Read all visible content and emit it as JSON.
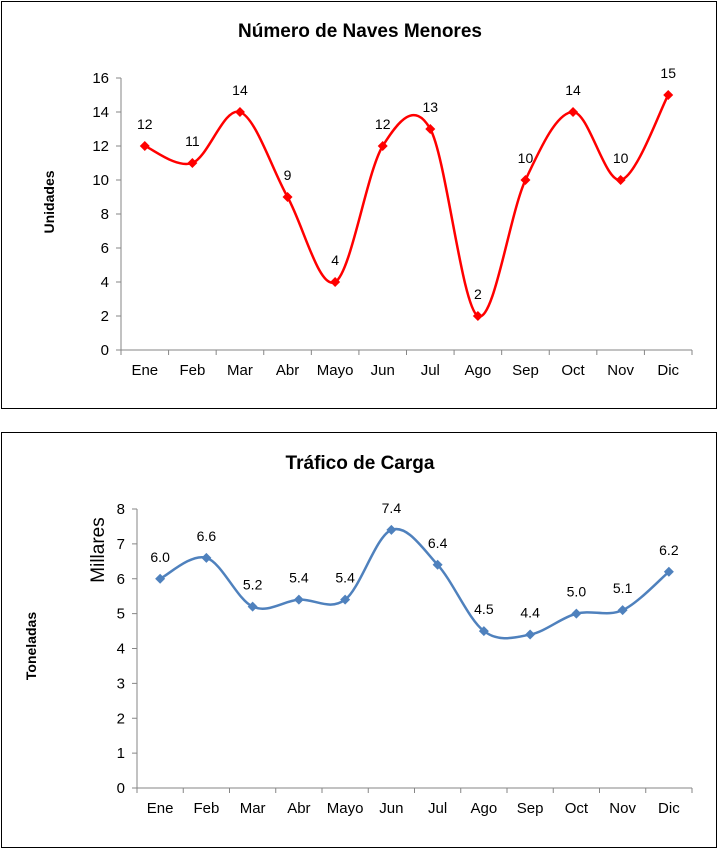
{
  "chart_data": [
    {
      "type": "line",
      "title": "Número de Naves Menores",
      "ylabel": "Unidades",
      "xlabel": "",
      "categories": [
        "Ene",
        "Feb",
        "Mar",
        "Abr",
        "Mayo",
        "Jun",
        "Jul",
        "Ago",
        "Sep",
        "Oct",
        "Nov",
        "Dic"
      ],
      "values": [
        12,
        11,
        14,
        9,
        4,
        12,
        13,
        2,
        10,
        14,
        10,
        15
      ],
      "data_labels": [
        "12",
        "11",
        "14",
        "9",
        "4",
        "12",
        "13",
        "2",
        "10",
        "14",
        "10",
        "15"
      ],
      "ylim": [
        0,
        16
      ],
      "yticks": [
        "0",
        "2",
        "4",
        "6",
        "8",
        "10",
        "12",
        "14",
        "16"
      ],
      "color": "#ff0000",
      "marker": "diamond",
      "smooth": true,
      "grid": false,
      "legend": "none"
    },
    {
      "type": "line",
      "title": "Tráfico de Carga",
      "ylabel": "Toneladas",
      "unit_label": "Millares",
      "xlabel": "",
      "categories": [
        "Ene",
        "Feb",
        "Mar",
        "Abr",
        "Mayo",
        "Jun",
        "Jul",
        "Ago",
        "Sep",
        "Oct",
        "Nov",
        "Dic"
      ],
      "values": [
        6.0,
        6.6,
        5.2,
        5.4,
        5.4,
        7.4,
        6.4,
        4.5,
        4.4,
        5.0,
        5.1,
        6.2
      ],
      "data_labels": [
        "6.0",
        "6.6",
        "5.2",
        "5.4",
        "5.4",
        "7.4",
        "6.4",
        "4.5",
        "4.4",
        "5.0",
        "5.1",
        "6.2"
      ],
      "ylim": [
        0,
        8
      ],
      "yticks": [
        "0",
        "1",
        "2",
        "3",
        "4",
        "5",
        "6",
        "7",
        "8"
      ],
      "color": "#4f81bd",
      "marker": "diamond",
      "smooth": true,
      "grid": false,
      "legend": "none"
    }
  ]
}
